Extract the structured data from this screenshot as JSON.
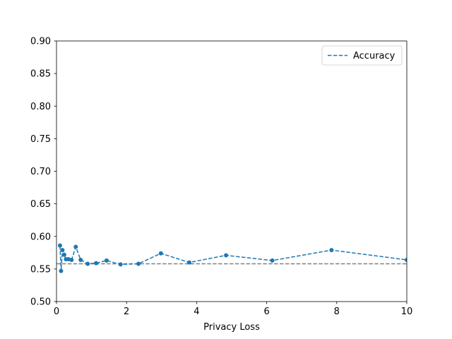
{
  "chart_data": {
    "type": "line",
    "xlabel": "Privacy Loss",
    "ylabel": "",
    "xlim": [
      0,
      10
    ],
    "ylim": [
      0.5,
      0.9
    ],
    "x_ticks": [
      0,
      2,
      4,
      6,
      8,
      10
    ],
    "y_ticks": [
      0.5,
      0.55,
      0.6,
      0.65,
      0.7,
      0.75,
      0.8,
      0.85,
      0.9
    ],
    "x_tick_labels": [
      "0",
      "2",
      "4",
      "6",
      "8",
      "10"
    ],
    "y_tick_labels": [
      "0.50",
      "0.55",
      "0.60",
      "0.65",
      "0.70",
      "0.75",
      "0.80",
      "0.85",
      "0.90"
    ],
    "grid": false,
    "legend": {
      "position": "top-right",
      "entries": [
        "Accuracy"
      ]
    },
    "series": [
      {
        "name": "Accuracy",
        "color": "#1f77b4",
        "line_style": "dashed",
        "marker": "circle",
        "x": [
          0.1,
          0.13,
          0.17,
          0.22,
          0.27,
          0.34,
          0.43,
          0.55,
          0.69,
          0.89,
          1.13,
          1.43,
          1.83,
          2.34,
          2.98,
          3.79,
          4.84,
          6.16,
          7.85,
          10.0
        ],
        "y": [
          0.586,
          0.547,
          0.579,
          0.572,
          0.565,
          0.565,
          0.564,
          0.584,
          0.564,
          0.558,
          0.559,
          0.563,
          0.557,
          0.558,
          0.574,
          0.56,
          0.571,
          0.563,
          0.579,
          0.564
        ]
      }
    ],
    "reference_line": {
      "y": 0.558,
      "color": "#808080",
      "line_style": "dashed"
    }
  }
}
